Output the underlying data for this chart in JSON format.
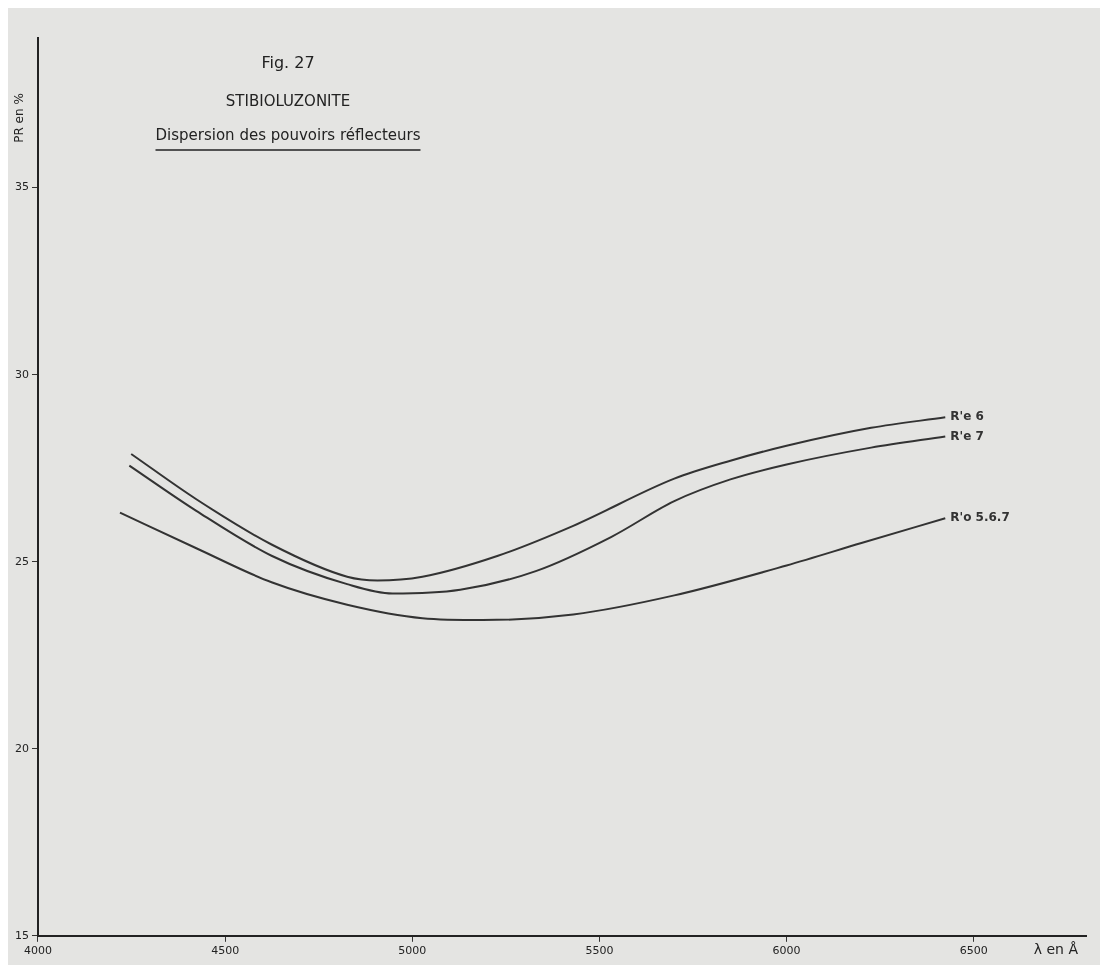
{
  "chart_data": {
    "type": "line",
    "title": "STIBIOLUZONITE",
    "subtitle": "Dispersion des pouvoirs réflecteurs",
    "annotations": [
      "Fig. 27"
    ],
    "xlabel": "λ en Å",
    "ylabel": "PR en %",
    "xlim": [
      4000,
      6800
    ],
    "ylim": [
      15,
      39
    ],
    "xticks": [
      4000,
      4500,
      5000,
      5500,
      6000,
      6500
    ],
    "yticks": [
      15,
      20,
      25,
      30,
      35
    ],
    "grid": false,
    "marker": "none",
    "line_style": "solid",
    "series": [
      {
        "name": "R'e 6",
        "color": "#333333",
        "x": [
          4249,
          4423,
          4624,
          4826,
          4907,
          5027,
          5229,
          5430,
          5700,
          5850,
          6000,
          6226,
          6424
        ],
        "values": [
          27.88,
          26.67,
          25.46,
          24.6,
          24.5,
          24.6,
          25.16,
          25.96,
          27.22,
          27.7,
          28.1,
          28.58,
          28.86
        ]
      },
      {
        "name": "R'e 7",
        "color": "#333333",
        "x": [
          4244,
          4423,
          4624,
          4826,
          4947,
          5128,
          5330,
          5531,
          5700,
          5850,
          6000,
          6226,
          6424
        ],
        "values": [
          27.57,
          26.36,
          25.16,
          24.4,
          24.15,
          24.25,
          24.75,
          25.66,
          26.62,
          27.2,
          27.6,
          28.05,
          28.35
        ]
      },
      {
        "name": "R'o 5.6.7",
        "color": "#333333",
        "x": [
          4219,
          4423,
          4624,
          4826,
          5027,
          5189,
          5430,
          5700,
          6000,
          6200,
          6424
        ],
        "values": [
          26.31,
          25.36,
          24.45,
          23.85,
          23.49,
          23.44,
          23.59,
          24.1,
          24.9,
          25.5,
          26.16
        ]
      }
    ]
  }
}
